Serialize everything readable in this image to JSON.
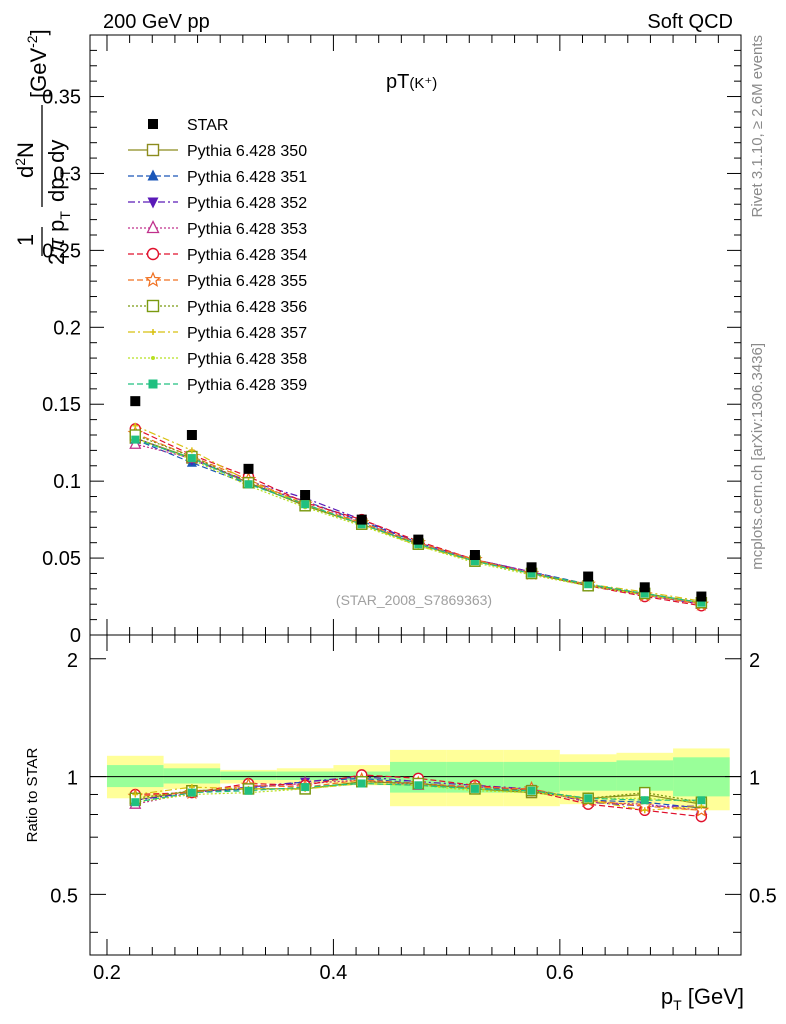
{
  "header": {
    "left": "200 GeV pp",
    "right": "Soft QCD"
  },
  "side_labels": {
    "rivet": "Rivet 3.1.10, ≥ 2.6M events",
    "mcplots": "mcplots.cern.ch [arXiv:1306.3436]"
  },
  "chart_data": [
    {
      "type": "scatter",
      "panel": "main",
      "title": "pT(K⁺)",
      "title_main": "pT",
      "title_sub": "(K⁺)",
      "watermark": "(STAR_2008_S7869363)",
      "xlabel": "p_T [GeV]",
      "ylabel": "1/(2π p_T) d²N/(dp_T dy) [GeV⁻²]",
      "xlim": [
        0.185,
        0.76
      ],
      "ylim": [
        0,
        0.39
      ],
      "x_ticks": [
        "0.2",
        "0.4",
        "0.6"
      ],
      "y_ticks": [
        "0",
        "0.05",
        "0.1",
        "0.15",
        "0.2",
        "0.25",
        "0.3",
        "0.35"
      ],
      "legend_position": "top-left",
      "x": [
        0.225,
        0.275,
        0.325,
        0.375,
        0.425,
        0.475,
        0.525,
        0.575,
        0.625,
        0.675,
        0.725
      ],
      "data": {
        "name": "STAR",
        "color": "#000000",
        "values": [
          0.152,
          0.13,
          0.108,
          0.091,
          0.075,
          0.062,
          0.052,
          0.044,
          0.038,
          0.031,
          0.025
        ],
        "bin_edges": [
          0.2,
          0.25,
          0.3,
          0.35,
          0.4,
          0.45,
          0.5,
          0.55,
          0.6,
          0.65,
          0.7,
          0.75
        ]
      },
      "series": [
        {
          "name": "Pythia 6.428 350",
          "color": "#8c8c1e",
          "marker": "open-square",
          "dash": "solid",
          "values": [
            0.128,
            0.115,
            0.099,
            0.084,
            0.072,
            0.059,
            0.048,
            0.04,
            0.032,
            0.027,
            0.021
          ]
        },
        {
          "name": "Pythia 6.428 351",
          "color": "#1a56b8",
          "marker": "filled-triangle-up",
          "dash": "dashed",
          "values": [
            0.127,
            0.112,
            0.098,
            0.087,
            0.074,
            0.06,
            0.049,
            0.041,
            0.033,
            0.026,
            0.02
          ]
        },
        {
          "name": "Pythia 6.428 352",
          "color": "#5a1ab8",
          "marker": "filled-triangle-down",
          "dash": "dashdot",
          "values": [
            0.128,
            0.114,
            0.1,
            0.089,
            0.075,
            0.06,
            0.049,
            0.041,
            0.032,
            0.026,
            0.02
          ]
        },
        {
          "name": "Pythia 6.428 353",
          "color": "#c0308c",
          "marker": "open-triangle-up",
          "dash": "dotted",
          "values": [
            0.124,
            0.115,
            0.099,
            0.087,
            0.073,
            0.059,
            0.049,
            0.041,
            0.032,
            0.026,
            0.02
          ]
        },
        {
          "name": "Pythia 6.428 354",
          "color": "#e0102c",
          "marker": "open-circle",
          "dash": "dashed",
          "values": [
            0.134,
            0.117,
            0.103,
            0.086,
            0.075,
            0.061,
            0.049,
            0.04,
            0.032,
            0.025,
            0.019
          ]
        },
        {
          "name": "Pythia 6.428 355",
          "color": "#f07020",
          "marker": "open-star",
          "dash": "dashed",
          "values": [
            0.131,
            0.116,
            0.101,
            0.085,
            0.073,
            0.06,
            0.049,
            0.04,
            0.033,
            0.026,
            0.02
          ]
        },
        {
          "name": "Pythia 6.428 356",
          "color": "#7a9a10",
          "marker": "open-square",
          "dash": "dotted",
          "values": [
            0.13,
            0.116,
            0.099,
            0.084,
            0.072,
            0.059,
            0.048,
            0.04,
            0.032,
            0.027,
            0.021
          ]
        },
        {
          "name": "Pythia 6.428 357",
          "color": "#d8c010",
          "marker": "small-cross",
          "dash": "dashdot",
          "values": [
            0.136,
            0.12,
            0.1,
            0.085,
            0.072,
            0.058,
            0.048,
            0.04,
            0.033,
            0.028,
            0.022
          ]
        },
        {
          "name": "Pythia 6.428 358",
          "color": "#b8e020",
          "marker": "small-dot",
          "dash": "dotted",
          "values": [
            0.128,
            0.114,
            0.097,
            0.083,
            0.071,
            0.058,
            0.047,
            0.039,
            0.032,
            0.026,
            0.021
          ]
        },
        {
          "name": "Pythia 6.428 359",
          "color": "#20c080",
          "marker": "filled-square",
          "dash": "dashed",
          "values": [
            0.127,
            0.115,
            0.098,
            0.085,
            0.072,
            0.059,
            0.048,
            0.04,
            0.033,
            0.027,
            0.021
          ]
        }
      ]
    },
    {
      "type": "scatter",
      "panel": "ratio",
      "ylabel": "Ratio to STAR",
      "xlim": [
        0.185,
        0.76
      ],
      "ylim": [
        0.35,
        2.3
      ],
      "ylog": true,
      "y_ticks": [
        "0.5",
        "1",
        "2"
      ],
      "reference_line": 1,
      "bands": {
        "bin_edges": [
          0.2,
          0.25,
          0.3,
          0.35,
          0.4,
          0.45,
          0.5,
          0.55,
          0.6,
          0.65,
          0.7,
          0.75
        ],
        "inner": {
          "color": "#99ff99",
          "lo": [
            0.94,
            0.96,
            0.98,
            0.98,
            0.98,
            0.91,
            0.91,
            0.91,
            0.92,
            0.92,
            0.89
          ],
          "hi": [
            1.07,
            1.05,
            1.03,
            1.03,
            1.03,
            1.09,
            1.09,
            1.09,
            1.09,
            1.1,
            1.12
          ]
        },
        "outer": {
          "color": "#ffff99",
          "lo": [
            0.88,
            0.93,
            0.96,
            0.96,
            0.95,
            0.84,
            0.84,
            0.84,
            0.85,
            0.85,
            0.82
          ],
          "hi": [
            1.13,
            1.08,
            1.04,
            1.05,
            1.07,
            1.17,
            1.17,
            1.17,
            1.14,
            1.15,
            1.18
          ]
        }
      },
      "series": [
        {
          "name": "Pythia 6.428 350",
          "values": [
            0.87,
            0.92,
            0.93,
            0.93,
            0.97,
            0.96,
            0.93,
            0.91,
            0.88,
            0.9,
            0.85
          ]
        },
        {
          "name": "Pythia 6.428 351",
          "values": [
            0.86,
            0.91,
            0.93,
            0.97,
            0.99,
            0.96,
            0.94,
            0.92,
            0.87,
            0.86,
            0.83
          ]
        },
        {
          "name": "Pythia 6.428 352",
          "values": [
            0.87,
            0.91,
            0.94,
            0.97,
            1.0,
            0.97,
            0.95,
            0.93,
            0.86,
            0.84,
            0.84
          ]
        },
        {
          "name": "Pythia 6.428 353",
          "values": [
            0.85,
            0.91,
            0.94,
            0.96,
            0.98,
            0.95,
            0.94,
            0.93,
            0.86,
            0.85,
            0.82
          ]
        },
        {
          "name": "Pythia 6.428 354",
          "values": [
            0.9,
            0.91,
            0.96,
            0.95,
            1.01,
            0.99,
            0.95,
            0.92,
            0.85,
            0.82,
            0.79
          ]
        },
        {
          "name": "Pythia 6.428 355",
          "values": [
            0.89,
            0.91,
            0.95,
            0.94,
            0.98,
            0.96,
            0.94,
            0.93,
            0.87,
            0.84,
            0.82
          ]
        },
        {
          "name": "Pythia 6.428 356",
          "values": [
            0.88,
            0.92,
            0.93,
            0.93,
            0.97,
            0.96,
            0.93,
            0.92,
            0.88,
            0.91,
            0.86
          ]
        },
        {
          "name": "Pythia 6.428 357",
          "values": [
            0.9,
            0.94,
            0.93,
            0.93,
            0.96,
            0.95,
            0.93,
            0.92,
            0.87,
            0.82,
            0.84
          ]
        },
        {
          "name": "Pythia 6.428 358",
          "values": [
            0.86,
            0.9,
            0.91,
            0.93,
            0.96,
            0.95,
            0.92,
            0.91,
            0.88,
            0.88,
            0.86
          ]
        },
        {
          "name": "Pythia 6.428 359",
          "values": [
            0.86,
            0.91,
            0.92,
            0.94,
            0.96,
            0.95,
            0.93,
            0.92,
            0.88,
            0.87,
            0.87
          ]
        }
      ]
    }
  ]
}
